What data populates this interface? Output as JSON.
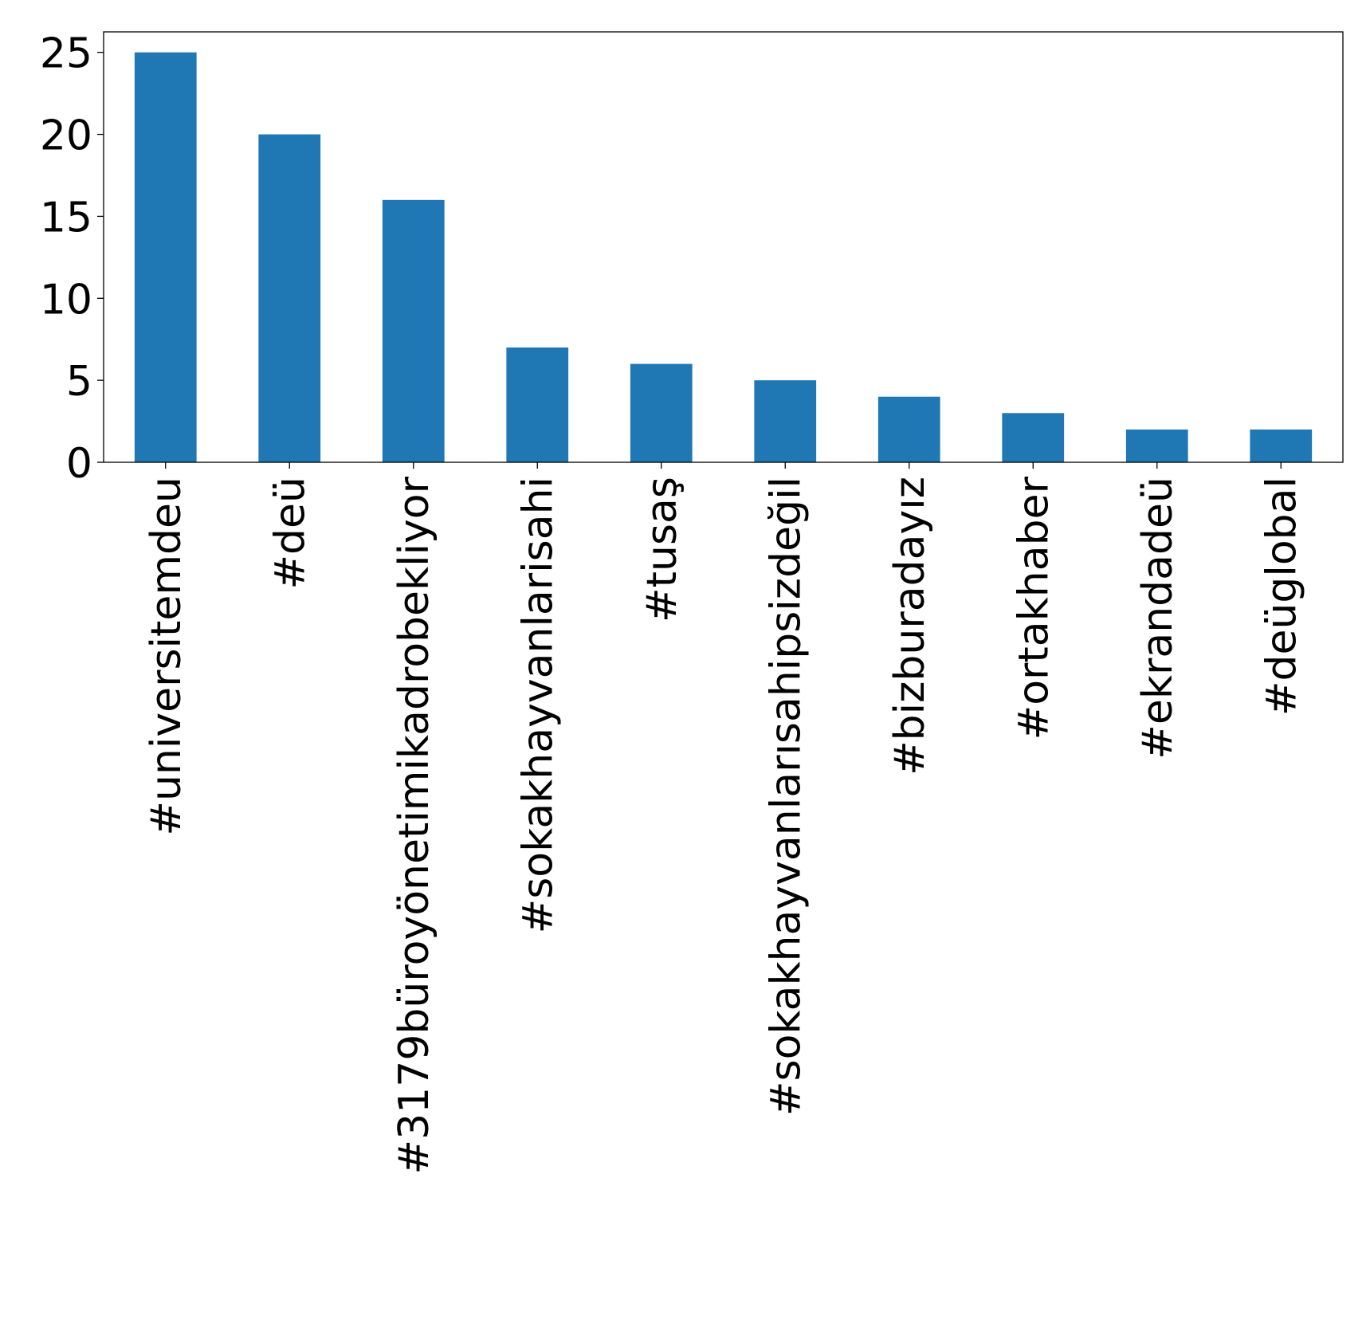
{
  "chart_data": {
    "type": "bar",
    "categories": [
      "#universitemdeu",
      "#deü",
      "#3179büroyönetimikadrobekliyor",
      "#sokakhayvanlarisahi",
      "#tusaş",
      "#sokakhayvanlarısahipsizdeğil",
      "#bizburadayız",
      "#ortakhaber",
      "#ekrandadeü",
      "#deüglobal"
    ],
    "values": [
      25,
      20,
      16,
      7,
      6,
      5,
      4,
      3,
      2,
      2
    ],
    "ylim": [
      0,
      26.25
    ],
    "yticks": [
      0,
      5,
      10,
      15,
      20,
      25
    ],
    "title": "",
    "xlabel": "",
    "ylabel": "",
    "grid": false,
    "bar_color": "#1f77b4"
  }
}
